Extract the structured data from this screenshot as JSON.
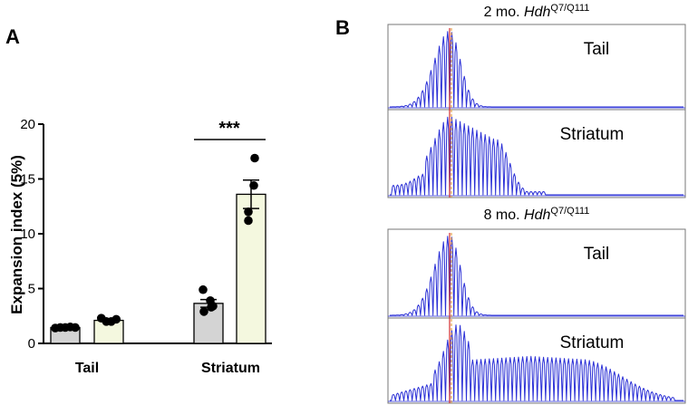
{
  "panels": {
    "a_label": "A",
    "b_label": "B"
  },
  "colors": {
    "bar_tail_group": "#d4d4d4",
    "bar_second_group": "#f4f8df",
    "trace": "#2a2fd6",
    "marker_red": "#d42b2b",
    "marker_orange": "#e2932a",
    "panel_border": "#777777"
  },
  "chart_data": [
    {
      "type": "bar",
      "ylabel": "Expansion index (5%)",
      "ylim": [
        0,
        20
      ],
      "yticks": [
        "0",
        "5",
        "10",
        "15",
        "20"
      ],
      "categories": [
        "Tail",
        "Striatum"
      ],
      "series": [
        {
          "values": [
            1.45,
            3.65
          ],
          "sem": [
            0.05,
            0.35
          ],
          "points": [
            [
              1.4,
              1.45,
              1.45,
              1.5,
              1.45
            ],
            [
              3.3,
              4.9,
              3.9,
              2.9,
              3.4
            ]
          ]
        },
        {
          "values": [
            2.1,
            13.6
          ],
          "sem": [
            0.1,
            1.3
          ],
          "points": [
            [
              2.3,
              2.0,
              2.0,
              2.2
            ],
            [
              16.9,
              14.4,
              12.0,
              11.2
            ]
          ]
        }
      ],
      "annotations": [
        {
          "text": "***",
          "category": "Striatum"
        }
      ],
      "legend": "none",
      "grid": false
    },
    {
      "type": "line",
      "description_kind": "fragment-size traces",
      "groups": [
        {
          "title_prefix": "2 mo. ",
          "title_gene": "Hdh",
          "title_sup": "Q7/Q111",
          "traces": [
            {
              "label": "Tail",
              "kind": "narrow"
            },
            {
              "label": "Striatum",
              "kind": "medium"
            }
          ]
        },
        {
          "title_prefix": "8 mo. ",
          "title_gene": "Hdh",
          "title_sup": "Q7/Q111",
          "traces": [
            {
              "label": "Tail",
              "kind": "narrow"
            },
            {
              "label": "Striatum",
              "kind": "wide"
            }
          ]
        }
      ]
    }
  ]
}
